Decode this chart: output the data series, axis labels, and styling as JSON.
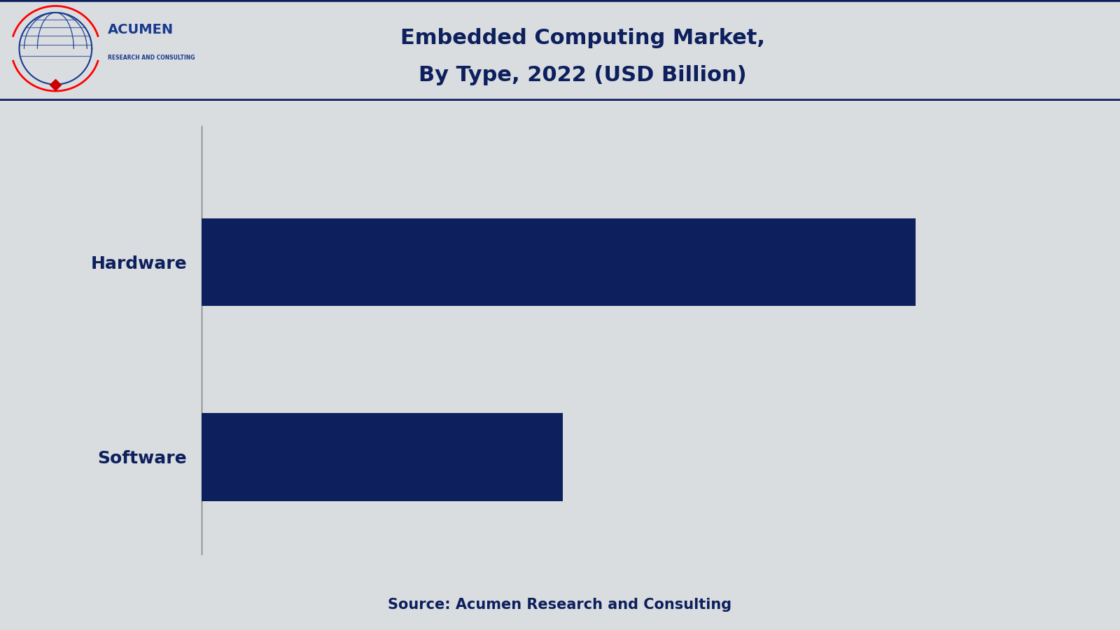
{
  "title_line1": "Embedded Computing Market,",
  "title_line2": "By Type, 2022 (USD Billion)",
  "categories": [
    "Hardware",
    "Software"
  ],
  "values": [
    85,
    43
  ],
  "bar_color": "#0d1f5c",
  "background_color": "#d9dde0",
  "header_bg_color": "#d9dde0",
  "axis_color": "#7a7a7a",
  "label_color": "#0d1f5c",
  "title_color": "#0d1f5c",
  "source_text": "Source: Acumen Research and Consulting",
  "source_color": "#0d1f5c",
  "border_color": "#0d1f5c",
  "label_fontsize": 18,
  "title_fontsize": 22,
  "source_fontsize": 15,
  "xlim": [
    0,
    100
  ],
  "bar_height": 0.45
}
